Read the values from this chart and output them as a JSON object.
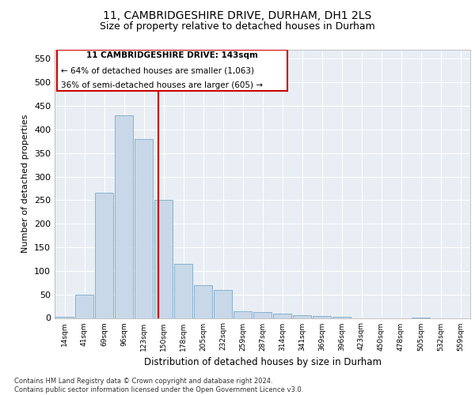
{
  "title": "11, CAMBRIDGESHIRE DRIVE, DURHAM, DH1 2LS",
  "subtitle": "Size of property relative to detached houses in Durham",
  "xlabel": "Distribution of detached houses by size in Durham",
  "ylabel": "Number of detached properties",
  "footnote": "Contains HM Land Registry data © Crown copyright and database right 2024.\nContains public sector information licensed under the Open Government Licence v3.0.",
  "bar_labels": [
    "14sqm",
    "41sqm",
    "69sqm",
    "96sqm",
    "123sqm",
    "150sqm",
    "178sqm",
    "205sqm",
    "232sqm",
    "259sqm",
    "287sqm",
    "314sqm",
    "341sqm",
    "369sqm",
    "396sqm",
    "423sqm",
    "450sqm",
    "478sqm",
    "505sqm",
    "532sqm",
    "559sqm"
  ],
  "bar_values": [
    2,
    50,
    265,
    430,
    380,
    250,
    115,
    70,
    60,
    15,
    13,
    10,
    6,
    5,
    2,
    0,
    0,
    0,
    1,
    0,
    0
  ],
  "bar_color": "#c8d8e8",
  "bar_edge_color": "#7aaaca",
  "vline_color": "#cc0000",
  "annotation_title": "11 CAMBRIDGESHIRE DRIVE: 143sqm",
  "annotation_line1": "← 64% of detached houses are smaller (1,063)",
  "annotation_line2": "36% of semi-detached houses are larger (605) →",
  "annotation_box_color": "#ffffff",
  "annotation_box_edgecolor": "#cc0000",
  "ylim": [
    0,
    570
  ],
  "yticks": [
    0,
    50,
    100,
    150,
    200,
    250,
    300,
    350,
    400,
    450,
    500,
    550
  ],
  "background_color": "#e8eef4",
  "title_fontsize": 10,
  "subtitle_fontsize": 9
}
